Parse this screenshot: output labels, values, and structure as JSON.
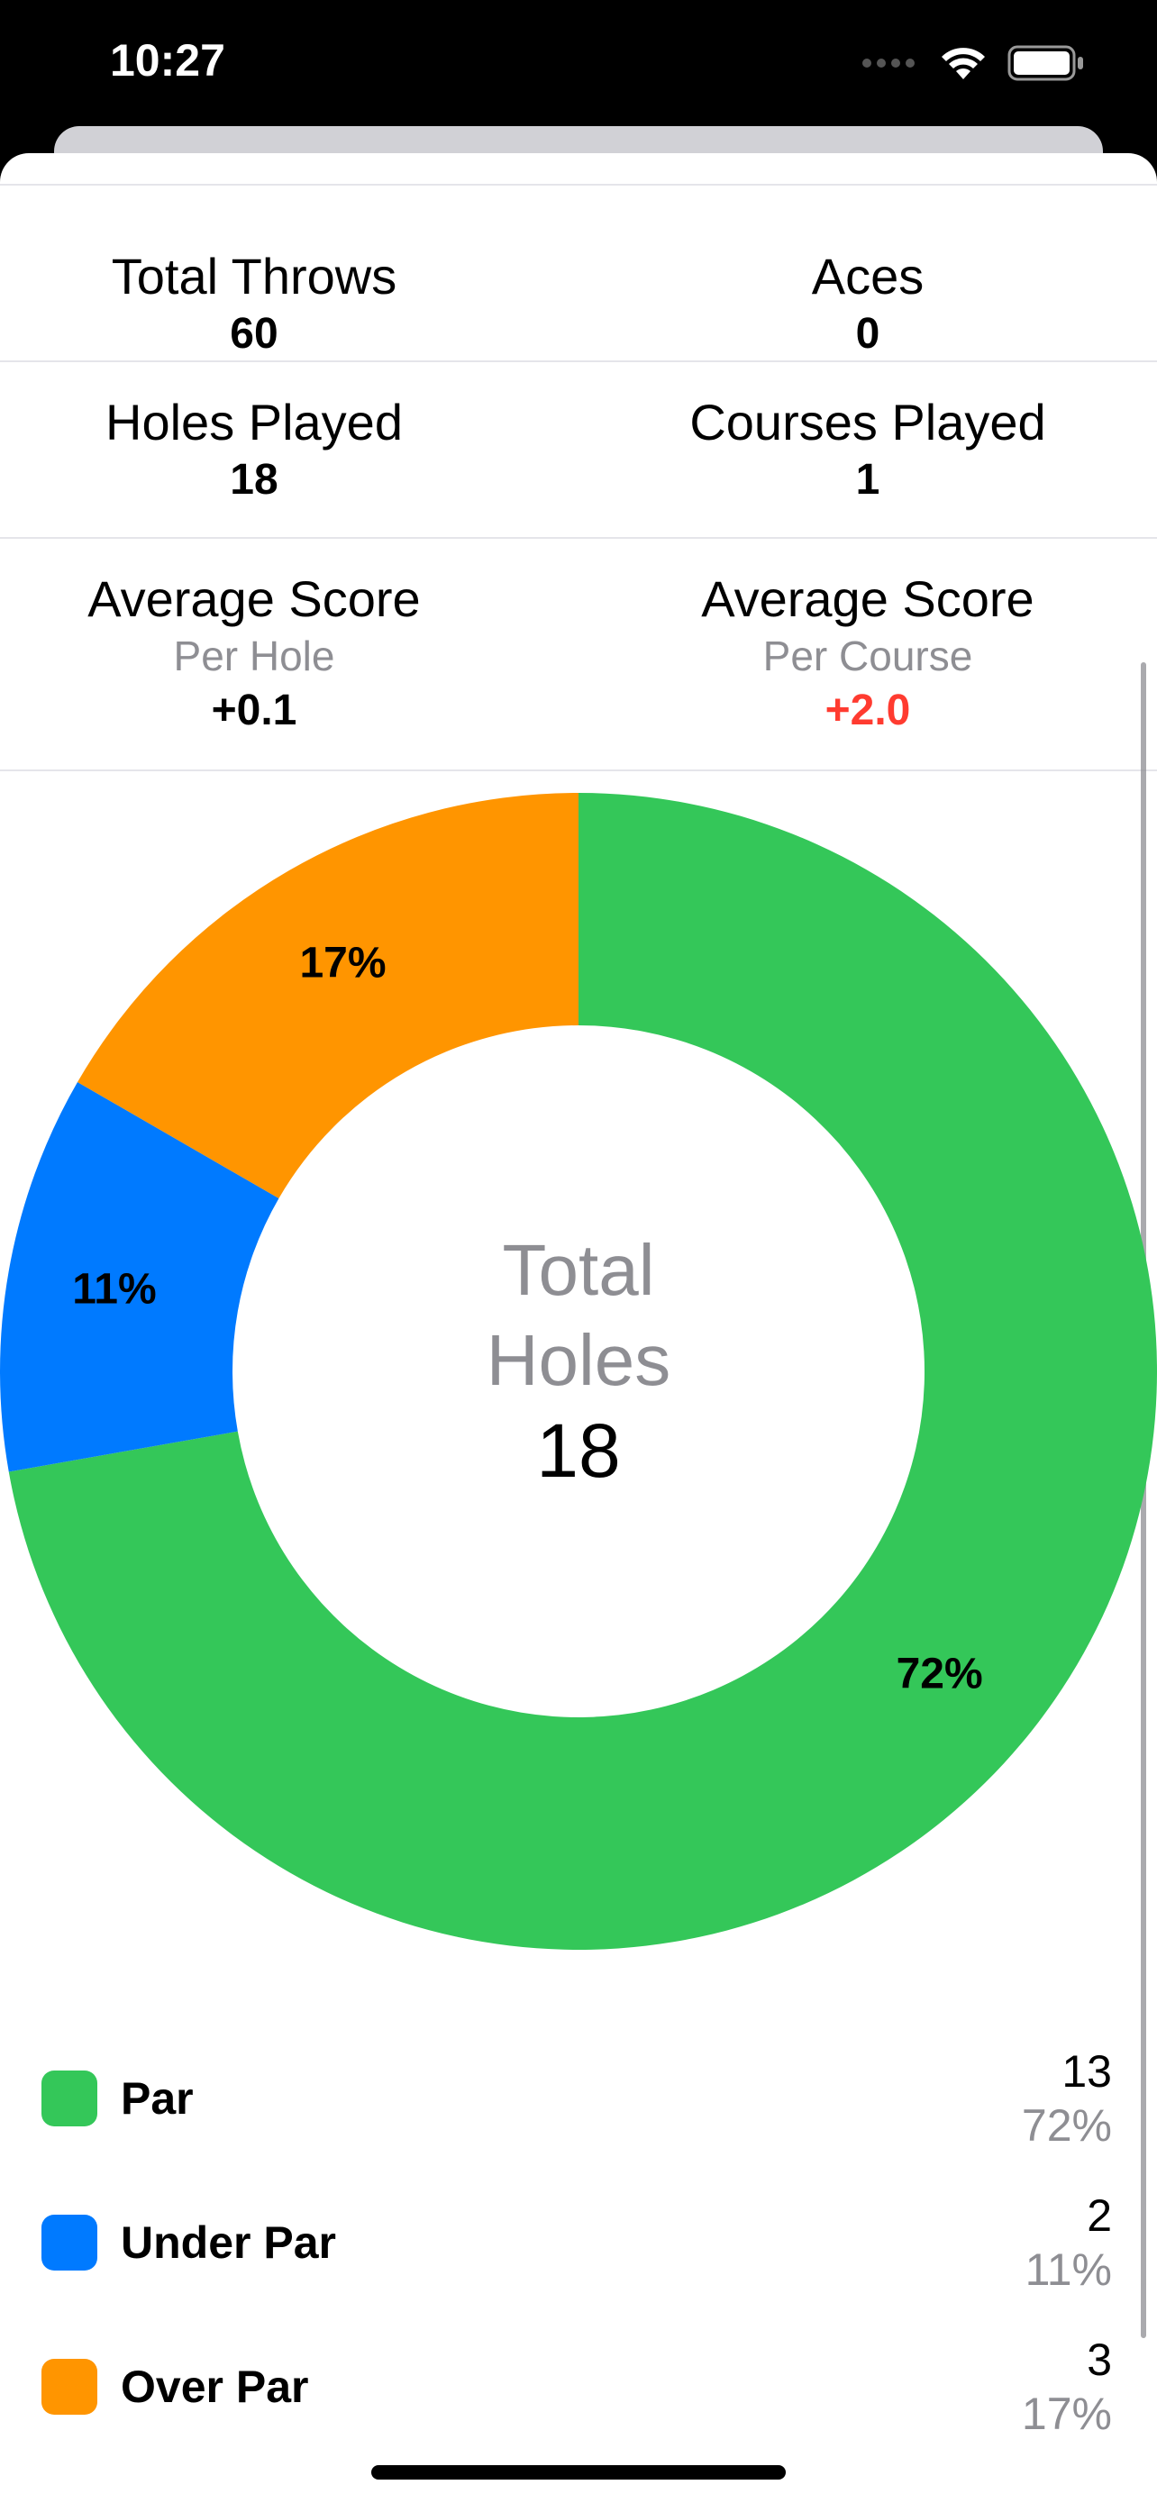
{
  "status_bar": {
    "time": "10:27",
    "icons": [
      "signal-dots-icon",
      "wifi-icon",
      "battery-icon"
    ]
  },
  "stats": {
    "total_throws": {
      "title": "Total Throws",
      "value": "60"
    },
    "aces": {
      "title": "Aces",
      "value": "0"
    },
    "holes_played": {
      "title": "Holes Played",
      "value": "18"
    },
    "courses_played": {
      "title": "Courses Played",
      "value": "1"
    },
    "avg_per_hole": {
      "title": "Average Score",
      "subtitle": "Per Hole",
      "value": "+0.1"
    },
    "avg_per_course": {
      "title": "Average Score",
      "subtitle": "Per Course",
      "value": "+2.0"
    }
  },
  "chart_data": {
    "type": "pie",
    "donut": true,
    "center_label_line1": "Total",
    "center_label_line2": "Holes",
    "center_value": "18",
    "slices": [
      {
        "name": "Par",
        "value": 13,
        "label": "72%",
        "color": "#34c759"
      },
      {
        "name": "Under Par",
        "value": 2,
        "label": "11%",
        "color": "#007aff"
      },
      {
        "name": "Over Par",
        "value": 3,
        "label": "17%",
        "color": "#ff9500"
      }
    ]
  },
  "legend": [
    {
      "label": "Par",
      "count": "13",
      "percent": "72%",
      "color": "#34c759"
    },
    {
      "label": "Under Par",
      "count": "2",
      "percent": "11%",
      "color": "#007aff"
    },
    {
      "label": "Over Par",
      "count": "3",
      "percent": "17%",
      "color": "#ff9500"
    }
  ]
}
